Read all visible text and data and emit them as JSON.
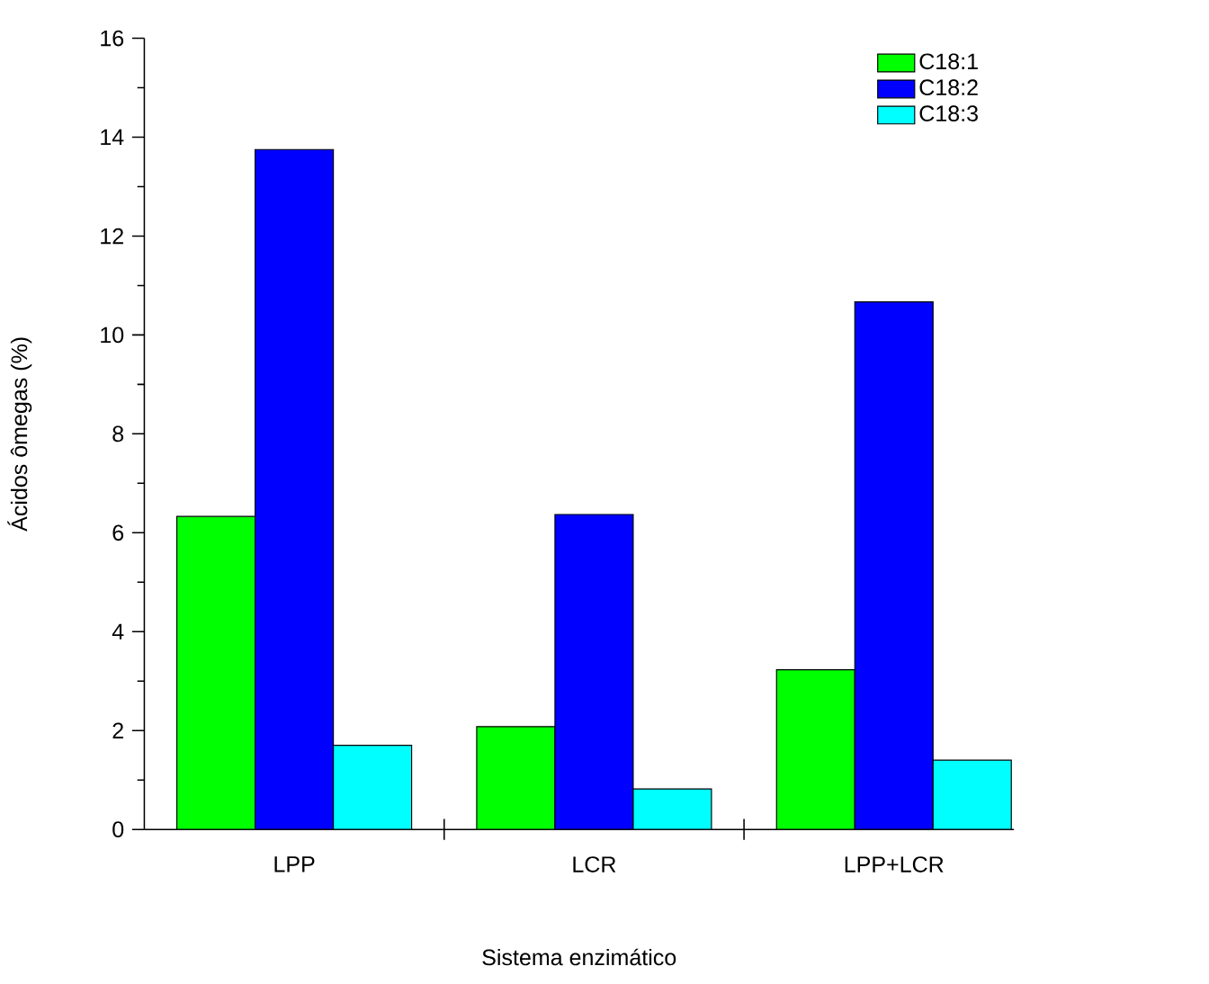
{
  "chart_data": {
    "type": "bar",
    "xlabel": "Sistema enzimático",
    "ylabel": "Ácidos ômegas (%)",
    "categories": [
      "LPP",
      "LCR",
      "LPP+LCR"
    ],
    "series": [
      {
        "name": "C18:1",
        "color": "#00ff00",
        "values": [
          6.33,
          2.08,
          3.23
        ]
      },
      {
        "name": "C18:2",
        "color": "#0000ff",
        "values": [
          13.75,
          6.37,
          10.67
        ]
      },
      {
        "name": "C18:3",
        "color": "#00ffff",
        "values": [
          1.7,
          0.82,
          1.4
        ]
      }
    ],
    "ylim": [
      0,
      16
    ],
    "yticks": [
      0,
      2,
      4,
      6,
      8,
      10,
      12,
      14,
      16
    ],
    "legend": "top right"
  }
}
